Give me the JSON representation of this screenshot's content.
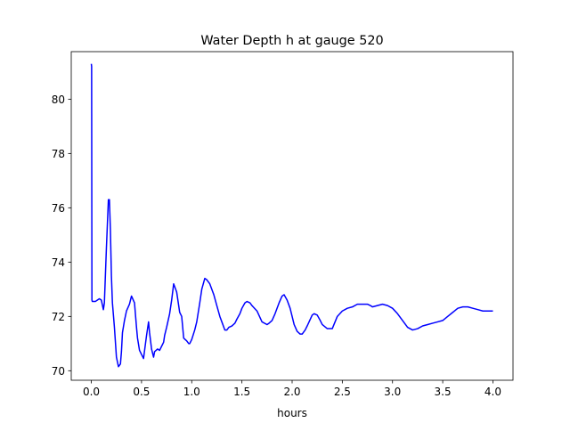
{
  "chart_data": {
    "type": "line",
    "title": "Water Depth h at gauge 520",
    "xlabel": "hours",
    "ylabel": "",
    "xlim": [
      -0.2,
      4.2
    ],
    "ylim": [
      69.65,
      81.75
    ],
    "xticks": [
      0.0,
      0.5,
      1.0,
      1.5,
      2.0,
      2.5,
      3.0,
      3.5,
      4.0
    ],
    "xtick_labels": [
      "0.0",
      "0.5",
      "1.0",
      "1.5",
      "2.0",
      "2.5",
      "3.0",
      "3.5",
      "4.0"
    ],
    "yticks": [
      70,
      72,
      74,
      76,
      78,
      80
    ],
    "ytick_labels": [
      "70",
      "72",
      "74",
      "76",
      "78",
      "80"
    ],
    "grid": false,
    "legend": "none",
    "series": [
      {
        "color": "#0000ff",
        "x": [
          0.0,
          0.003,
          0.006,
          0.01,
          0.02,
          0.04,
          0.06,
          0.08,
          0.1,
          0.12,
          0.13,
          0.15,
          0.17,
          0.18,
          0.19,
          0.2,
          0.21,
          0.23,
          0.25,
          0.27,
          0.29,
          0.3,
          0.31,
          0.33,
          0.35,
          0.38,
          0.4,
          0.43,
          0.45,
          0.46,
          0.48,
          0.5,
          0.52,
          0.55,
          0.57,
          0.58,
          0.6,
          0.62,
          0.63,
          0.66,
          0.68,
          0.7,
          0.72,
          0.73,
          0.75,
          0.78,
          0.8,
          0.82,
          0.85,
          0.87,
          0.88,
          0.9,
          0.92,
          0.95,
          0.97,
          0.98,
          1.0,
          1.03,
          1.05,
          1.08,
          1.1,
          1.13,
          1.15,
          1.18,
          1.2,
          1.22,
          1.25,
          1.28,
          1.3,
          1.33,
          1.35,
          1.37,
          1.4,
          1.43,
          1.45,
          1.48,
          1.5,
          1.53,
          1.55,
          1.58,
          1.6,
          1.65,
          1.7,
          1.75,
          1.77,
          1.8,
          1.83,
          1.87,
          1.9,
          1.92,
          1.95,
          1.98,
          2.0,
          2.02,
          2.05,
          2.08,
          2.1,
          2.13,
          2.15,
          2.2,
          2.22,
          2.25,
          2.28,
          2.3,
          2.35,
          2.4,
          2.45,
          2.5,
          2.55,
          2.6,
          2.65,
          2.7,
          2.75,
          2.78,
          2.8,
          2.85,
          2.9,
          2.95,
          3.0,
          3.05,
          3.1,
          3.15,
          3.2,
          3.25,
          3.3,
          3.35,
          3.4,
          3.45,
          3.5,
          3.55,
          3.6,
          3.65,
          3.7,
          3.75,
          3.8,
          3.85,
          3.9,
          3.95,
          4.0
        ],
        "y": [
          81.3,
          81.2,
          72.6,
          72.55,
          72.55,
          72.55,
          72.6,
          72.65,
          72.6,
          72.25,
          72.5,
          74.5,
          76.3,
          76.3,
          75.2,
          73.5,
          72.5,
          71.6,
          70.5,
          70.15,
          70.25,
          70.7,
          71.4,
          71.85,
          72.2,
          72.45,
          72.75,
          72.5,
          71.6,
          71.2,
          70.75,
          70.6,
          70.45,
          71.3,
          71.8,
          71.4,
          70.8,
          70.5,
          70.7,
          70.8,
          70.75,
          70.9,
          71.05,
          71.3,
          71.6,
          72.1,
          72.6,
          73.2,
          72.9,
          72.4,
          72.15,
          72.0,
          71.2,
          71.1,
          71.0,
          71.0,
          71.15,
          71.5,
          71.8,
          72.5,
          73.0,
          73.4,
          73.35,
          73.2,
          73.0,
          72.8,
          72.4,
          72.0,
          71.8,
          71.5,
          71.5,
          71.6,
          71.65,
          71.75,
          71.9,
          72.1,
          72.3,
          72.5,
          72.55,
          72.5,
          72.4,
          72.2,
          71.8,
          71.7,
          71.75,
          71.85,
          72.1,
          72.5,
          72.75,
          72.8,
          72.6,
          72.3,
          72.0,
          71.7,
          71.45,
          71.35,
          71.35,
          71.5,
          71.65,
          72.05,
          72.1,
          72.05,
          71.85,
          71.7,
          71.55,
          71.55,
          72.0,
          72.2,
          72.3,
          72.35,
          72.45,
          72.45,
          72.45,
          72.4,
          72.35,
          72.4,
          72.45,
          72.4,
          72.3,
          72.1,
          71.85,
          71.6,
          71.5,
          71.55,
          71.65,
          71.7,
          71.75,
          71.8,
          71.85,
          72.0,
          72.15,
          72.3,
          72.35,
          72.35,
          72.3,
          72.25,
          72.2,
          72.2,
          72.2
        ]
      }
    ]
  }
}
